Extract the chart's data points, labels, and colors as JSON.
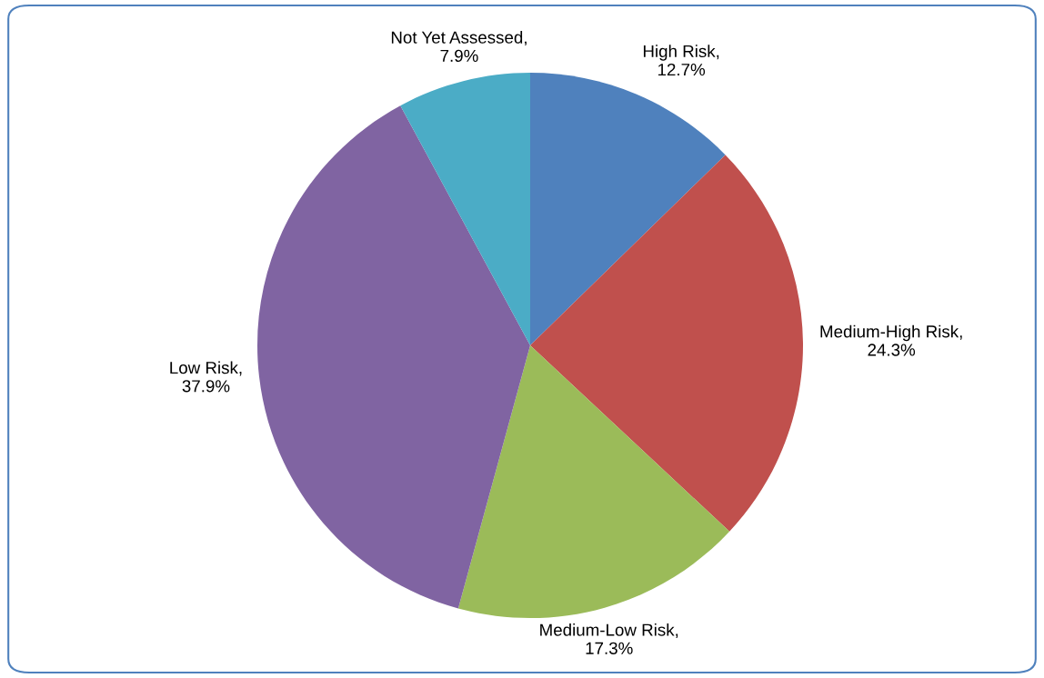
{
  "chart_data": {
    "type": "pie",
    "categories": [
      "High Risk",
      "Medium-High Risk",
      "Medium-Low Risk",
      "Low Risk",
      "Not Yet Assessed"
    ],
    "values": [
      12.7,
      24.3,
      17.3,
      37.9,
      7.9
    ],
    "colors": [
      "#4f81bd",
      "#c0504d",
      "#9bbb59",
      "#8064a2",
      "#4bacc6"
    ],
    "value_labels": [
      ",\n12.7%",
      ",\n24.3%",
      ",\n17.3%",
      ",\n37.9%",
      ",\n7.9%"
    ]
  }
}
